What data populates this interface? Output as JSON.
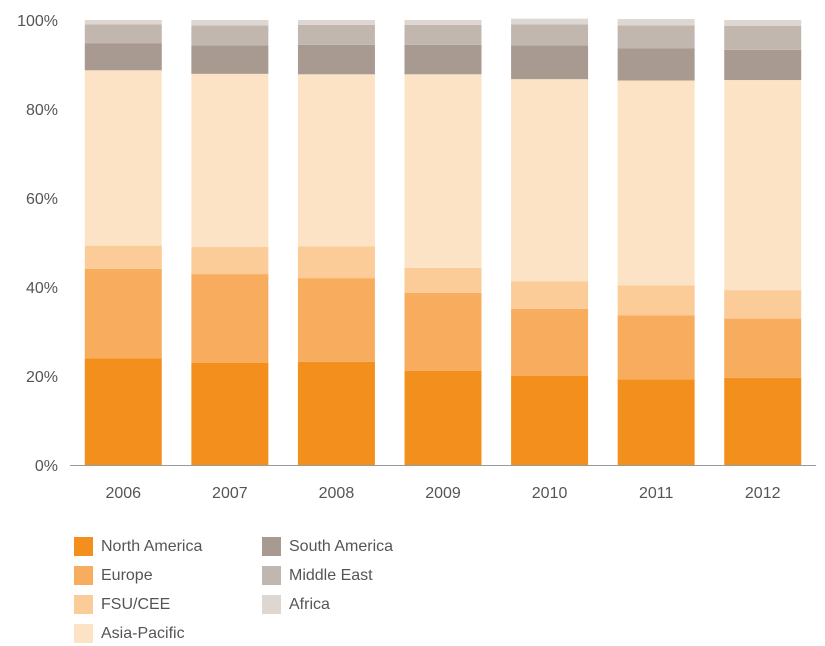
{
  "chart_data": {
    "type": "bar",
    "stacked": true,
    "categories": [
      "2006",
      "2007",
      "2008",
      "2009",
      "2010",
      "2011",
      "2012"
    ],
    "ylim": [
      0,
      100
    ],
    "yticks": [
      "0%",
      "20%",
      "40%",
      "60%",
      "80%",
      "100%"
    ],
    "ytick_values": [
      0,
      20,
      40,
      60,
      80,
      100
    ],
    "grid": false,
    "legend_position": "bottom-left",
    "series": [
      {
        "name": "North America",
        "color": "#F3901D",
        "values": [
          24.0,
          23.0,
          23.2,
          21.2,
          20.0,
          19.2,
          19.6
        ]
      },
      {
        "name": "Europe",
        "color": "#F7AC5E",
        "values": [
          20.1,
          19.9,
          18.8,
          17.5,
          15.1,
          14.4,
          13.3
        ]
      },
      {
        "name": "FSU/CEE",
        "color": "#FBCB98",
        "values": [
          5.2,
          6.1,
          7.1,
          5.6,
          6.2,
          6.8,
          6.4
        ]
      },
      {
        "name": "Asia-Pacific",
        "color": "#FDE3C6",
        "values": [
          39.4,
          38.9,
          38.7,
          43.5,
          45.4,
          46.0,
          47.2
        ]
      },
      {
        "name": "South America",
        "color": "#A89A90",
        "values": [
          6.1,
          6.4,
          6.6,
          6.6,
          7.6,
          7.2,
          6.8
        ]
      },
      {
        "name": "Middle East",
        "color": "#C2B7AF",
        "values": [
          4.2,
          4.5,
          4.5,
          4.5,
          4.7,
          5.2,
          5.4
        ]
      },
      {
        "name": "Africa",
        "color": "#DDD6D1",
        "values": [
          1.0,
          1.2,
          1.1,
          1.1,
          1.3,
          1.4,
          1.3
        ]
      }
    ]
  }
}
